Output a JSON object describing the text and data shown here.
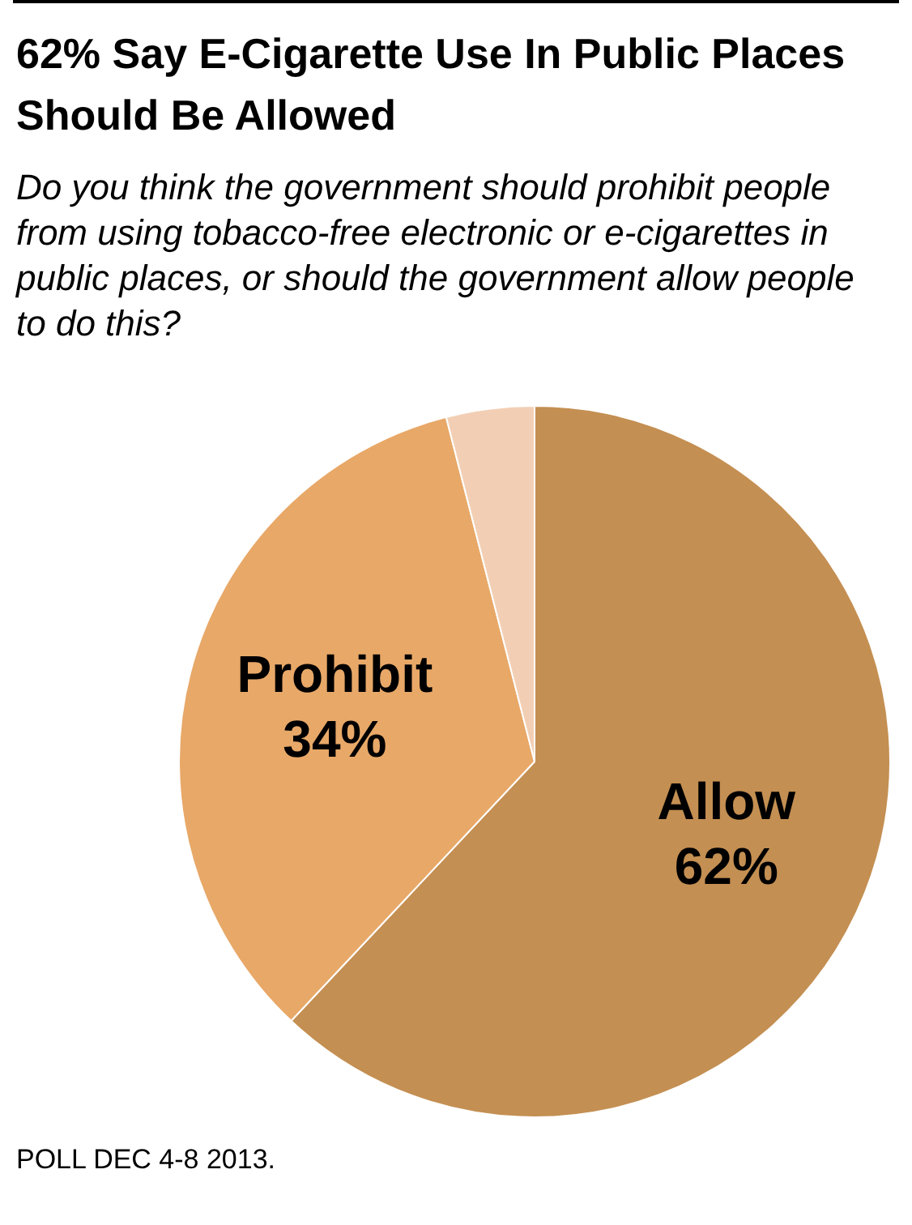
{
  "chart_data": {
    "type": "pie",
    "title": "62% Say E-Cigarette Use In Public Places Should Be Allowed",
    "subtitle": "Do you think the government should prohibit people from using tobacco-free electronic or e-cigarettes in public places, or should the government allow people to do this?",
    "categories": [
      "Allow",
      "Prohibit",
      null
    ],
    "values": [
      62,
      34,
      4
    ],
    "colors": [
      "#c48f52",
      "#e8a868",
      "#f2cfb4"
    ],
    "value_labels": [
      "62%",
      "34%",
      null
    ],
    "annotations": [
      "POLL DEC 4-8 2013."
    ]
  }
}
